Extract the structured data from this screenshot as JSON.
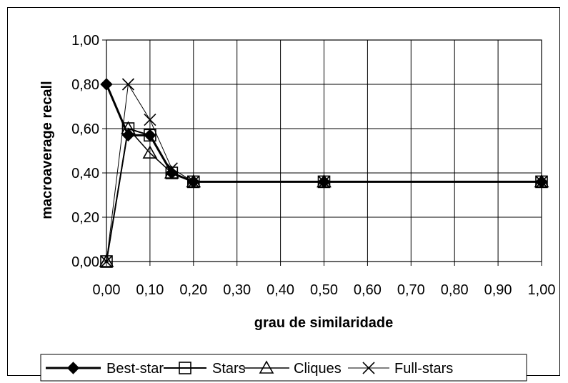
{
  "chart_data": {
    "type": "line",
    "title": "",
    "xlabel": "grau de similaridade",
    "ylabel": "macroaverage recall",
    "x_tick_labels": [
      "0,00",
      "0,10",
      "0,20",
      "0,30",
      "0,40",
      "0,50",
      "0,60",
      "0,70",
      "0,80",
      "0,90",
      "1,00"
    ],
    "y_tick_labels": [
      "0,00",
      "0,20",
      "0,40",
      "0,60",
      "0,80",
      "1,00"
    ],
    "xlim": [
      0,
      1
    ],
    "ylim": [
      0,
      1
    ],
    "grid": true,
    "legend_position": "bottom",
    "x": [
      0.0,
      0.05,
      0.1,
      0.15,
      0.2,
      0.5,
      1.0
    ],
    "series": [
      {
        "name": "Best-star",
        "marker": "diamond-filled",
        "values": [
          0.8,
          0.57,
          0.57,
          0.4,
          0.36,
          0.36,
          0.36
        ]
      },
      {
        "name": "Stars",
        "marker": "square-open",
        "values": [
          0.0,
          0.6,
          0.57,
          0.4,
          0.36,
          0.36,
          0.36
        ]
      },
      {
        "name": "Cliques",
        "marker": "triangle-open",
        "values": [
          0.0,
          0.6,
          0.49,
          0.4,
          0.36,
          0.36,
          0.36
        ]
      },
      {
        "name": "Full-stars",
        "marker": "x",
        "values": [
          0.0,
          0.8,
          0.64,
          0.42,
          0.36,
          0.36,
          0.36
        ]
      }
    ]
  }
}
